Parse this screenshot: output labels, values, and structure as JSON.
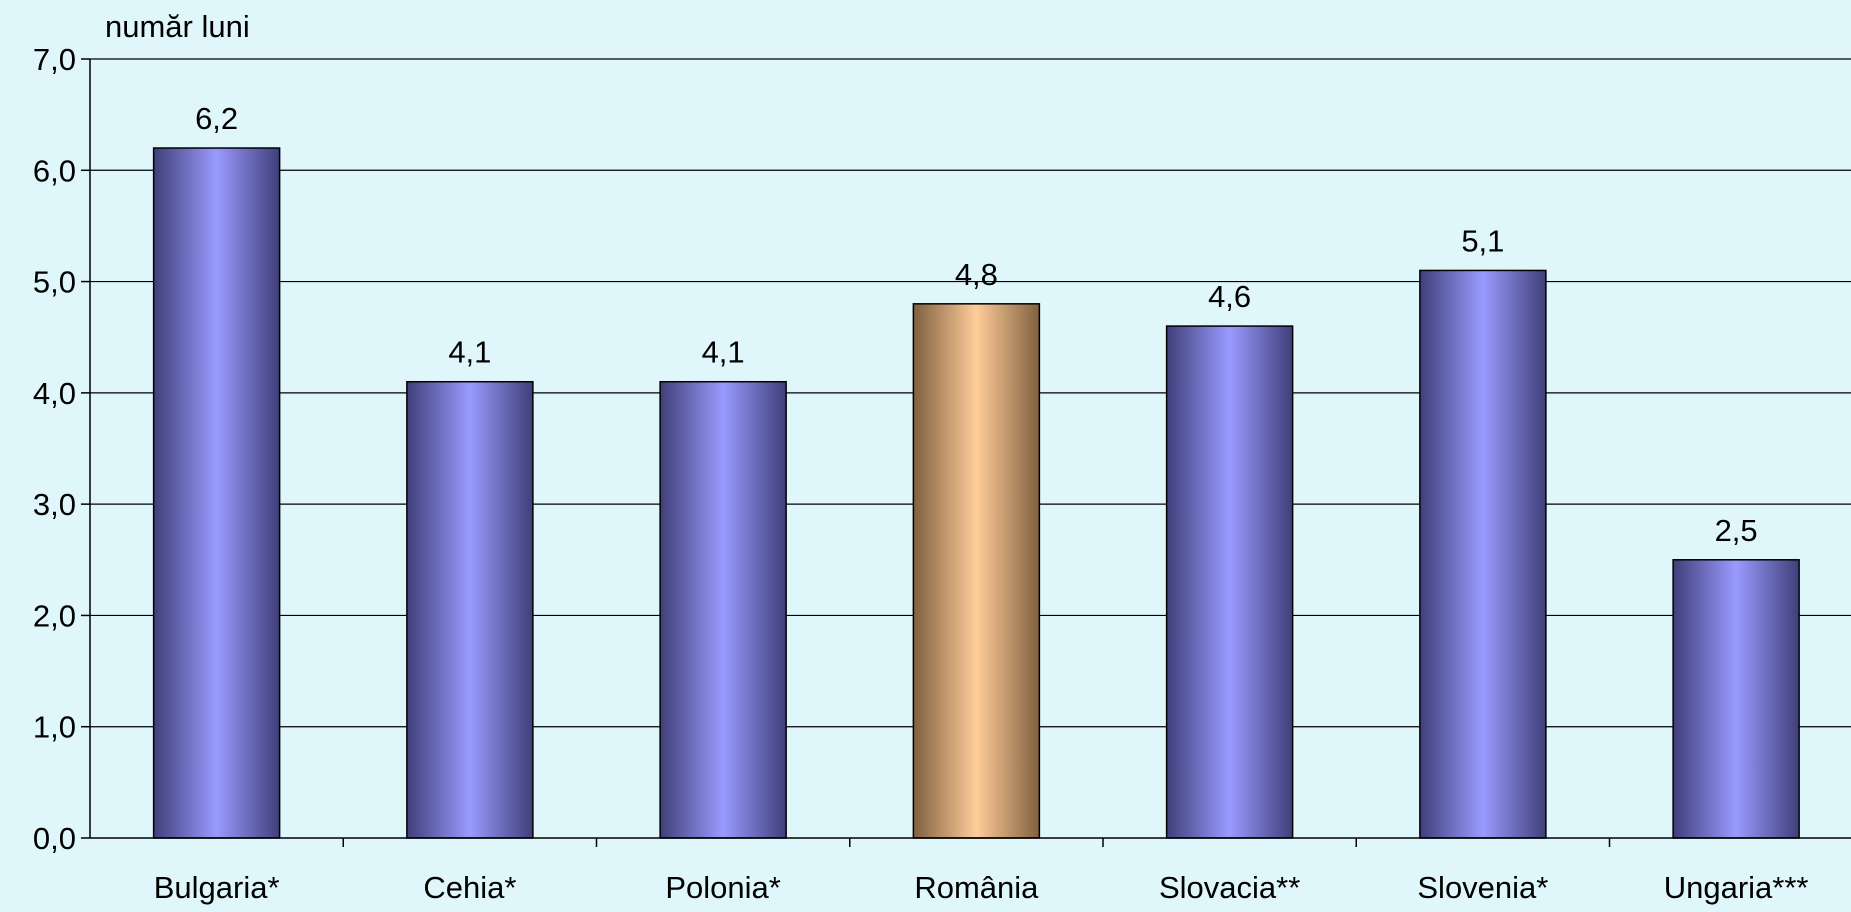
{
  "chart_data": {
    "type": "bar",
    "unit_label": "număr luni",
    "categories": [
      "Bulgaria*",
      "Cehia*",
      "Polonia*",
      "România",
      "Slovacia**",
      "Slovenia*",
      "Ungaria***"
    ],
    "values": [
      6.2,
      4.1,
      4.1,
      4.8,
      4.6,
      5.1,
      2.5
    ],
    "value_labels": [
      "6,2",
      "4,1",
      "4,1",
      "4,8",
      "4,6",
      "5,1",
      "2,5"
    ],
    "highlight_index": 3,
    "ylim": [
      0,
      7
    ],
    "y_ticks": [
      "0,0",
      "1,0",
      "2,0",
      "3,0",
      "4,0",
      "5,0",
      "6,0",
      "7,0"
    ],
    "grid": true,
    "legend": "none",
    "colors": {
      "background": "#dff7fb",
      "bar_light": "#9a9aff",
      "bar_dark": "#3f3f7a",
      "highlight_light": "#ffcc99",
      "highlight_dark": "#806040",
      "grid": "#000000"
    }
  }
}
